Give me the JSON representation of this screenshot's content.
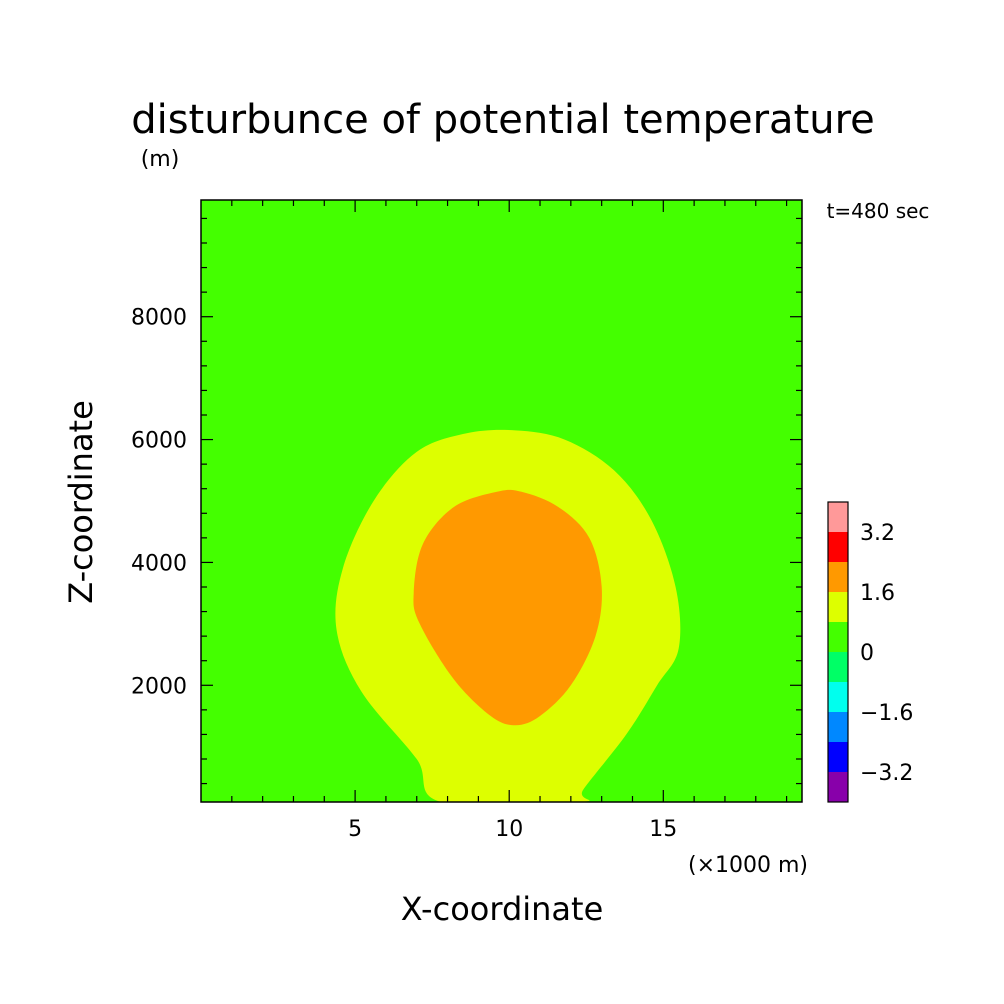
{
  "chart_data": {
    "type": "contour",
    "title": "disturbunce of potential temperature",
    "subtitle": "(m)",
    "time_label": "t=480 sec",
    "xlabel": "X-coordinate",
    "ylabel": "Z-coordinate",
    "x_unit_label": "(×1000 m)",
    "xlim": [
      0,
      19.5
    ],
    "ylim": [
      100,
      9900
    ],
    "x_ticks": [
      {
        "value": 5,
        "label": "5"
      },
      {
        "value": 10,
        "label": "10"
      },
      {
        "value": 15,
        "label": "15"
      }
    ],
    "y_ticks": [
      {
        "value": 2000,
        "label": "2000"
      },
      {
        "value": 4000,
        "label": "4000"
      },
      {
        "value": 6000,
        "label": "6000"
      },
      {
        "value": 8000,
        "label": "8000"
      }
    ],
    "x_minor_step": 1,
    "y_minor_step": 400,
    "background_color": "#44ff00",
    "regions": [
      {
        "name": "0.8 to 1.6",
        "color": "#ddff00",
        "outline": [
          [
            7.8,
            100
          ],
          [
            7.0,
            800
          ],
          [
            5.2,
            1900
          ],
          [
            4.4,
            2900
          ],
          [
            4.6,
            3900
          ],
          [
            5.6,
            5000
          ],
          [
            7.0,
            5800
          ],
          [
            8.6,
            6100
          ],
          [
            10.2,
            6150
          ],
          [
            11.8,
            6000
          ],
          [
            13.4,
            5500
          ],
          [
            14.6,
            4700
          ],
          [
            15.4,
            3600
          ],
          [
            15.5,
            2600
          ],
          [
            14.8,
            2000
          ],
          [
            13.8,
            1200
          ],
          [
            12.4,
            300
          ],
          [
            12.3,
            100
          ]
        ]
      },
      {
        "name": "1.6 to 2.4",
        "color": "#ff9900",
        "outline": [
          [
            10.2,
            1350
          ],
          [
            9.4,
            1500
          ],
          [
            8.2,
            2100
          ],
          [
            7.1,
            3000
          ],
          [
            6.9,
            3500
          ],
          [
            7.2,
            4300
          ],
          [
            8.2,
            4900
          ],
          [
            9.6,
            5150
          ],
          [
            10.4,
            5150
          ],
          [
            11.6,
            4900
          ],
          [
            12.6,
            4400
          ],
          [
            13.0,
            3600
          ],
          [
            12.8,
            2800
          ],
          [
            12.0,
            2000
          ],
          [
            11.0,
            1500
          ]
        ]
      }
    ],
    "colorbar": {
      "segments": [
        {
          "range": "below -3.2",
          "color": "#8800aa"
        },
        {
          "range": "-3.2 to -2.4",
          "color": "#0000ff"
        },
        {
          "range": "-2.4 to -1.6",
          "color": "#0088ff"
        },
        {
          "range": "-1.6 to -0.8",
          "color": "#00ffee"
        },
        {
          "range": "-0.8 to 0",
          "color": "#00ff66"
        },
        {
          "range": "0 to 0.8",
          "color": "#44ff00"
        },
        {
          "range": "0.8 to 1.6",
          "color": "#ddff00"
        },
        {
          "range": "1.6 to 2.4",
          "color": "#ff9900"
        },
        {
          "range": "2.4 to 3.2",
          "color": "#ff0000"
        },
        {
          "range": "above 3.2",
          "color": "#ff9999"
        }
      ],
      "labels": [
        "3.2",
        "1.6",
        "0",
        "-1.6",
        "-3.2"
      ],
      "label_values": [
        3.2,
        1.6,
        0,
        -1.6,
        -3.2
      ]
    }
  }
}
